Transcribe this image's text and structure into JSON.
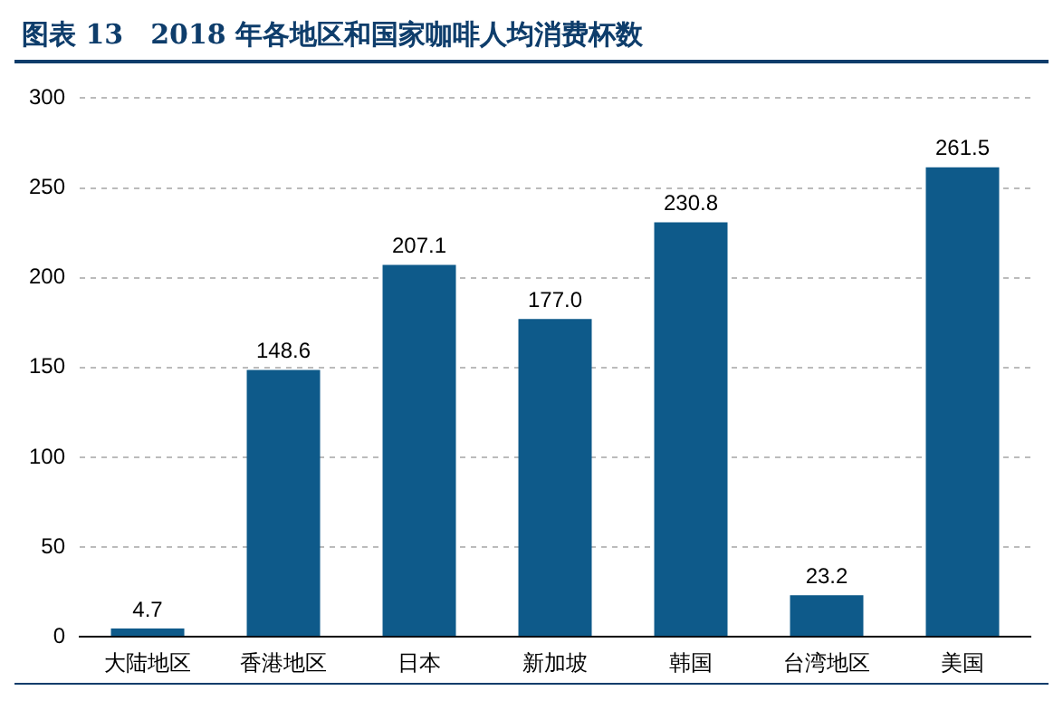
{
  "chart_data": {
    "type": "bar",
    "title": "图表 13　2018 年各地区和国家咖啡人均消费杯数",
    "categories": [
      "大陆地区",
      "香港地区",
      "日本",
      "新加坡",
      "韩国",
      "台湾地区",
      "美国"
    ],
    "values": [
      4.7,
      148.6,
      207.1,
      177.0,
      230.8,
      23.2,
      261.5
    ],
    "value_labels": [
      "4.7",
      "148.6",
      "207.1",
      "177.0",
      "230.8",
      "23.2",
      "261.5"
    ],
    "color": "#0e5a8a",
    "ylim": [
      0,
      300
    ],
    "yticks": [
      0,
      50,
      100,
      150,
      200,
      250,
      300
    ],
    "grid": "y",
    "legend": false
  }
}
